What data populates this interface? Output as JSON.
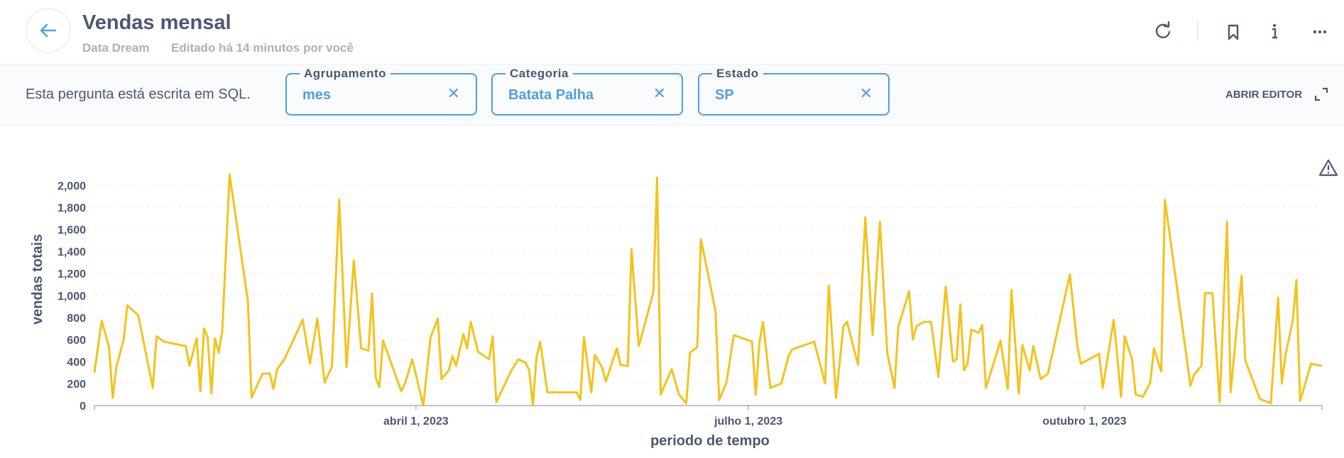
{
  "header": {
    "title": "Vendas mensal",
    "collection": "Data Dream",
    "edited": "Editado há 14 minutos por você"
  },
  "filters_bar": {
    "note": "Esta pergunta está escrita em SQL.",
    "filters": [
      {
        "label": "Agrupamento",
        "value": "mes"
      },
      {
        "label": "Categoria",
        "value": "Batata Palha"
      },
      {
        "label": "Estado",
        "value": "SP"
      }
    ],
    "open_editor": "ABRIR EDITOR"
  },
  "chart_data": {
    "type": "line",
    "xlabel": "periodo de tempo",
    "ylabel": "vendas totais",
    "color": "#f5c21b",
    "grid": true,
    "x": [
      "2023-01-03",
      "2023-01-05",
      "2023-01-07",
      "2023-01-08",
      "2023-01-09",
      "2023-01-11",
      "2023-01-12",
      "2023-01-15",
      "2023-01-19",
      "2023-01-20",
      "2023-01-22",
      "2023-01-28",
      "2023-01-29",
      "2023-01-31",
      "2023-02-01",
      "2023-02-02",
      "2023-02-03",
      "2023-02-04",
      "2023-02-05",
      "2023-02-06",
      "2023-02-07",
      "2023-02-09",
      "2023-02-14",
      "2023-02-15",
      "2023-02-18",
      "2023-02-20",
      "2023-02-21",
      "2023-02-22",
      "2023-02-24",
      "2023-03-01",
      "2023-03-03",
      "2023-03-05",
      "2023-03-07",
      "2023-03-09",
      "2023-03-11",
      "2023-03-13",
      "2023-03-15",
      "2023-03-17",
      "2023-03-19",
      "2023-03-20",
      "2023-03-21",
      "2023-03-22",
      "2023-03-23",
      "2023-03-28",
      "2023-03-29",
      "2023-03-31",
      "2023-04-03",
      "2023-04-05",
      "2023-04-07",
      "2023-04-08",
      "2023-04-10",
      "2023-04-11",
      "2023-04-12",
      "2023-04-14",
      "2023-04-15",
      "2023-04-16",
      "2023-04-18",
      "2023-04-21",
      "2023-04-22",
      "2023-04-23",
      "2023-04-27",
      "2023-04-29",
      "2023-05-01",
      "2023-05-02",
      "2023-05-03",
      "2023-05-04",
      "2023-05-05",
      "2023-05-07",
      "2023-05-15",
      "2023-05-16",
      "2023-05-17",
      "2023-05-19",
      "2023-05-20",
      "2023-05-22",
      "2023-05-23",
      "2023-05-26",
      "2023-05-27",
      "2023-05-29",
      "2023-05-30",
      "2023-06-01",
      "2023-06-05",
      "2023-06-06",
      "2023-06-07",
      "2023-06-10",
      "2023-06-12",
      "2023-06-14",
      "2023-06-15",
      "2023-06-17",
      "2023-06-18",
      "2023-06-22",
      "2023-06-23",
      "2023-06-25",
      "2023-06-27",
      "2023-07-02",
      "2023-07-03",
      "2023-07-04",
      "2023-07-05",
      "2023-07-07",
      "2023-07-10",
      "2023-07-12",
      "2023-07-13",
      "2023-07-19",
      "2023-07-22",
      "2023-07-23",
      "2023-07-25",
      "2023-07-27",
      "2023-07-28",
      "2023-07-31",
      "2023-08-02",
      "2023-08-04",
      "2023-08-06",
      "2023-08-08",
      "2023-08-10",
      "2023-08-11",
      "2023-08-14",
      "2023-08-15",
      "2023-08-16",
      "2023-08-18",
      "2023-08-20",
      "2023-08-22",
      "2023-08-24",
      "2023-08-26",
      "2023-08-27",
      "2023-08-28",
      "2023-08-29",
      "2023-08-30",
      "2023-08-31",
      "2023-09-02",
      "2023-09-03",
      "2023-09-04",
      "2023-09-06",
      "2023-09-08",
      "2023-09-10",
      "2023-09-11",
      "2023-09-13",
      "2023-09-14",
      "2023-09-16",
      "2023-09-17",
      "2023-09-19",
      "2023-09-21",
      "2023-09-27",
      "2023-09-29",
      "2023-09-30",
      "2023-10-05",
      "2023-10-06",
      "2023-10-09",
      "2023-10-11",
      "2023-10-12",
      "2023-10-14",
      "2023-10-15",
      "2023-10-17",
      "2023-10-19",
      "2023-10-20",
      "2023-10-22",
      "2023-10-23",
      "2023-10-30",
      "2023-10-31",
      "2023-11-02",
      "2023-11-03",
      "2023-11-05",
      "2023-11-07",
      "2023-11-09",
      "2023-11-10",
      "2023-11-13",
      "2023-11-14",
      "2023-11-18",
      "2023-11-21",
      "2023-11-23",
      "2023-11-24",
      "2023-11-25",
      "2023-11-27",
      "2023-11-28",
      "2023-11-29",
      "2023-12-02",
      "2023-12-05"
    ],
    "values": [
      300,
      770,
      530,
      70,
      350,
      600,
      910,
      820,
      160,
      630,
      580,
      540,
      360,
      610,
      130,
      700,
      620,
      110,
      610,
      480,
      680,
      2100,
      950,
      70,
      290,
      290,
      150,
      330,
      420,
      780,
      380,
      790,
      210,
      350,
      1870,
      350,
      1320,
      520,
      500,
      1020,
      250,
      170,
      590,
      130,
      200,
      420,
      0,
      620,
      790,
      240,
      320,
      450,
      360,
      650,
      520,
      760,
      490,
      420,
      630,
      30,
      310,
      420,
      390,
      320,
      0,
      440,
      580,
      120,
      120,
      50,
      620,
      120,
      460,
      340,
      220,
      520,
      370,
      360,
      1420,
      540,
      1030,
      2070,
      100,
      330,
      100,
      20,
      480,
      530,
      1510,
      860,
      50,
      210,
      640,
      580,
      100,
      570,
      760,
      160,
      200,
      450,
      510,
      580,
      200,
      1090,
      70,
      720,
      760,
      370,
      1710,
      640,
      1670,
      480,
      160,
      710,
      1040,
      600,
      720,
      760,
      760,
      260,
      1080,
      400,
      420,
      920,
      320,
      380,
      690,
      660,
      730,
      160,
      370,
      590,
      150,
      1050,
      110,
      550,
      320,
      540,
      240,
      290,
      1190,
      550,
      380,
      470,
      160,
      780,
      80,
      630,
      420,
      100,
      80,
      210,
      520,
      310,
      1870,
      180,
      280,
      360,
      1020,
      1020,
      30,
      1670,
      120,
      1180,
      410,
      60,
      20,
      980,
      200,
      460,
      770,
      1140,
      40,
      380,
      360
    ],
    "xlim": [
      "2023-01-03",
      "2023-12-05"
    ],
    "xticks": [
      {
        "value": "2023-04-01",
        "label": "abril 1, 2023"
      },
      {
        "value": "2023-07-01",
        "label": "julho 1, 2023"
      },
      {
        "value": "2023-10-01",
        "label": "outubro 1, 2023"
      }
    ],
    "ylim": [
      0,
      2100
    ],
    "yticks": [
      0,
      200,
      400,
      600,
      800,
      {
        "value": 1000,
        "label": "1,000"
      },
      {
        "value": 1200,
        "label": "1,200"
      },
      {
        "value": 1400,
        "label": "1,400"
      },
      {
        "value": 1600,
        "label": "1,600"
      },
      {
        "value": 1800,
        "label": "1,800"
      },
      {
        "value": 2000,
        "label": "2,000"
      }
    ]
  }
}
